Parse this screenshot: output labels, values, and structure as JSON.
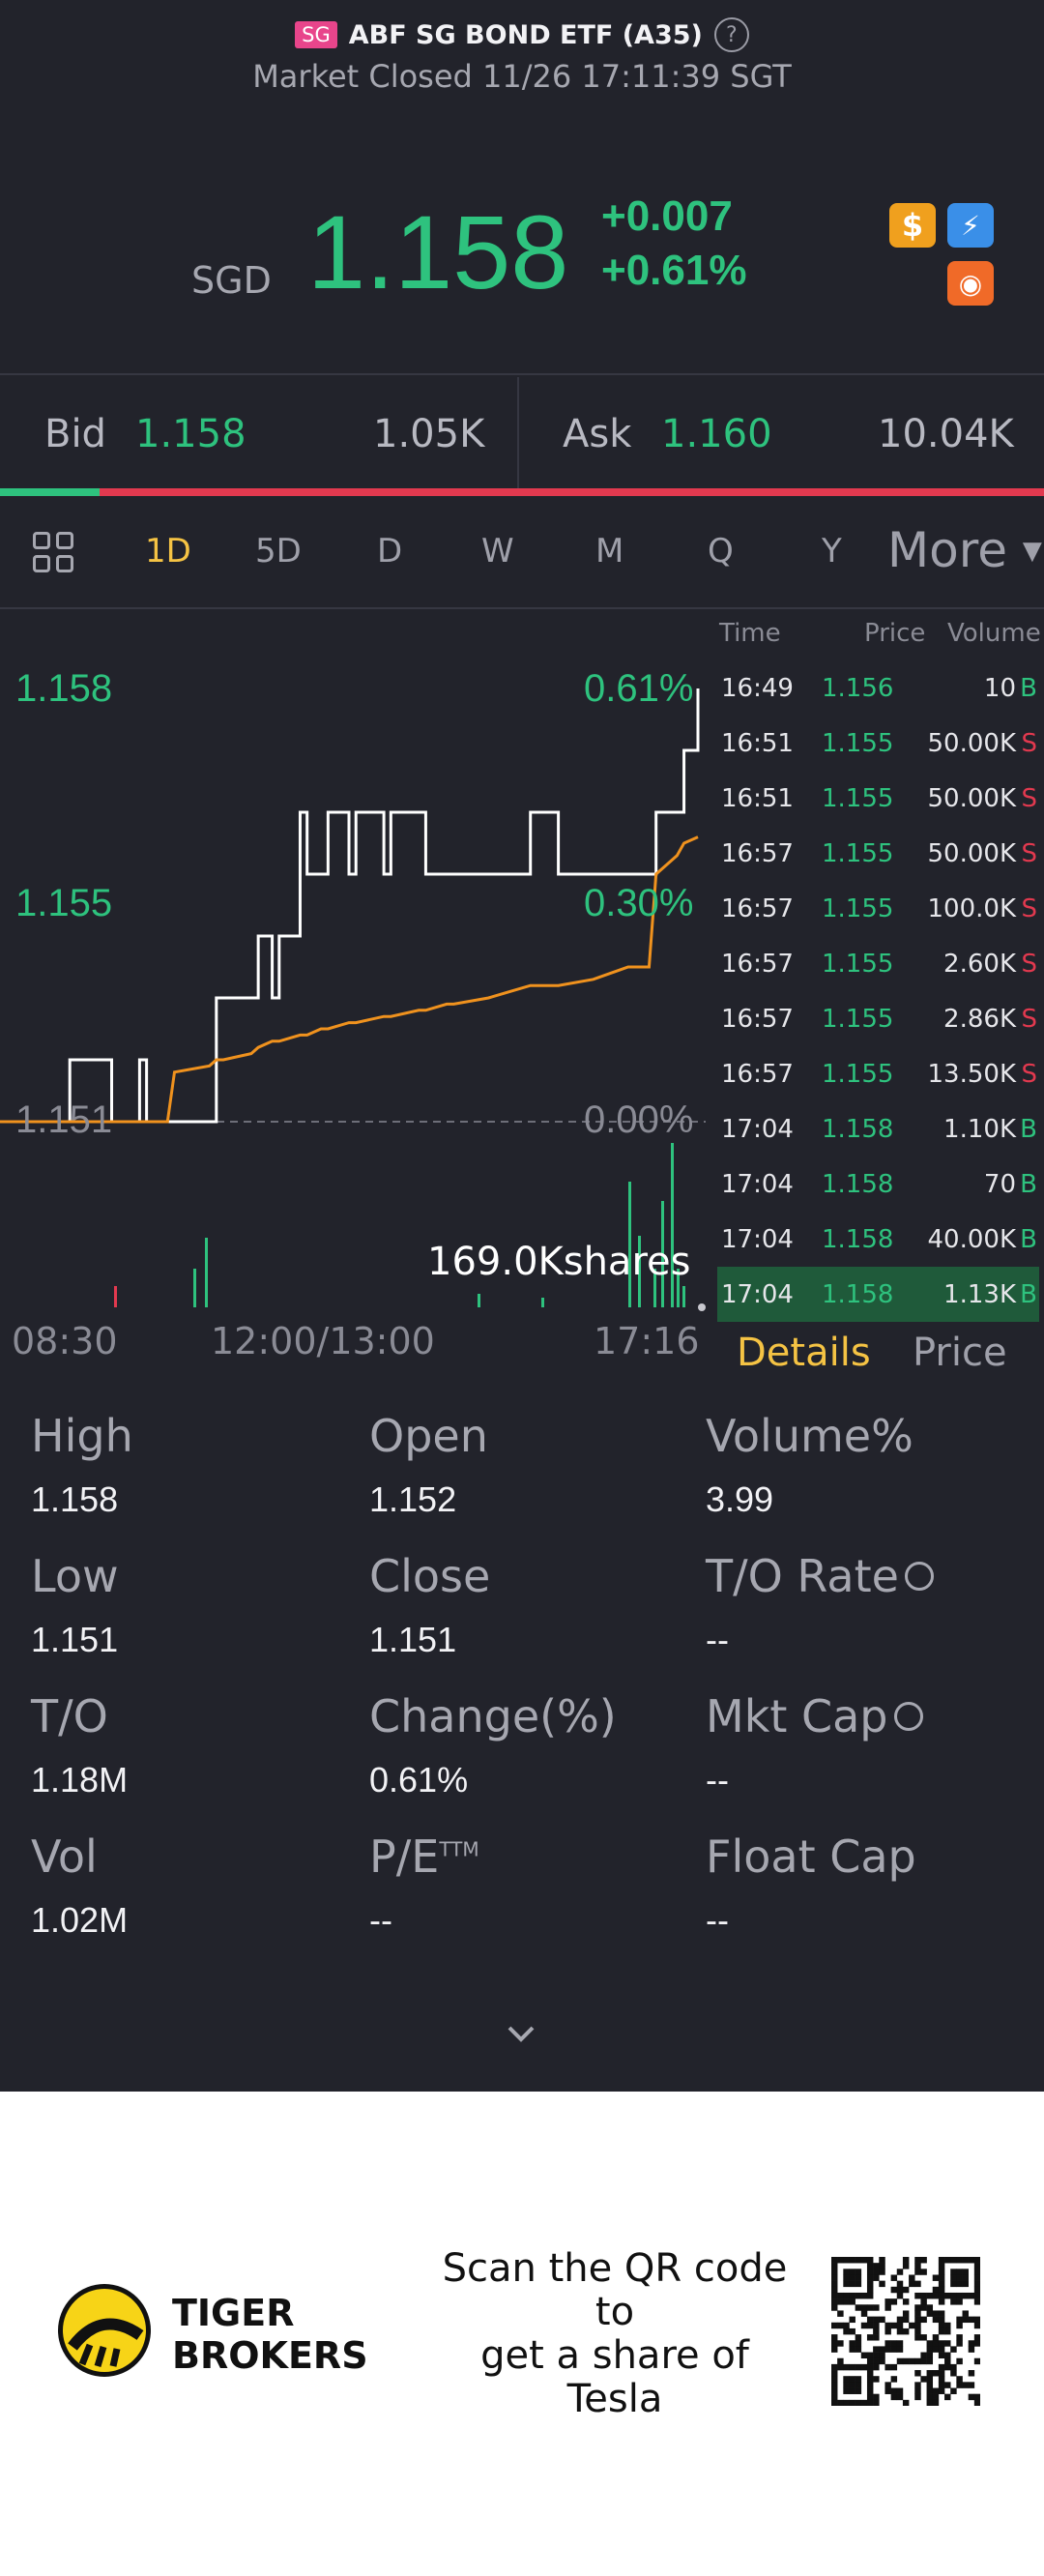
{
  "header": {
    "market_badge": "SG",
    "title": "ABF SG BOND ETF (A35)",
    "status": "Market Closed 11/26 17:11:39 SGT"
  },
  "quote": {
    "currency": "SGD",
    "price": "1.158",
    "change": "+0.007",
    "change_pct": "+0.61%"
  },
  "bid_ask": {
    "bid_label": "Bid",
    "bid_price": "1.158",
    "bid_volume": "1.05K",
    "ask_label": "Ask",
    "ask_price": "1.160",
    "ask_volume": "10.04K",
    "bid_ratio": 0.095
  },
  "period_tabs": [
    "1D",
    "5D",
    "D",
    "W",
    "M",
    "Q",
    "Y"
  ],
  "period_active": "1D",
  "more_label": "More",
  "chart": {
    "y_labels": [
      "1.158",
      "1.155",
      "1.151"
    ],
    "pct_labels": [
      "0.61%",
      "0.30%",
      "0.00%"
    ],
    "x_labels": [
      "08:30",
      "12:00/13:00",
      "17:16"
    ],
    "volume_label": "169.0Kshares"
  },
  "chart_data": {
    "type": "line",
    "xlabel": "",
    "ylabel": "",
    "ylim": [
      1.151,
      1.158
    ],
    "x": [
      0,
      9,
      10,
      15,
      16,
      18,
      20,
      21,
      24,
      25,
      30,
      31,
      32,
      36,
      37,
      39,
      40,
      43,
      44,
      46,
      47,
      50,
      51,
      55,
      56,
      60,
      61,
      64,
      65,
      70,
      73,
      76,
      80,
      85,
      90,
      93,
      94,
      97,
      98,
      100
    ],
    "series": [
      {
        "values": [
          1.151,
          1.151,
          1.152,
          1.152,
          1.151,
          1.151,
          1.152,
          1.151,
          1.151,
          1.151,
          1.151,
          1.153,
          1.153,
          1.153,
          1.154,
          1.153,
          1.154,
          1.156,
          1.155,
          1.155,
          1.156,
          1.155,
          1.156,
          1.155,
          1.156,
          1.156,
          1.155,
          1.155,
          1.155,
          1.155,
          1.155,
          1.156,
          1.155,
          1.155,
          1.155,
          1.155,
          1.156,
          1.156,
          1.157,
          1.158
        ]
      },
      {
        "values": [
          1.151,
          1.151,
          1.151,
          1.151,
          1.151,
          1.151,
          1.151,
          1.151,
          1.151,
          1.1518,
          1.1519,
          1.152,
          1.152,
          1.1521,
          1.1522,
          1.1523,
          1.1523,
          1.1524,
          1.1524,
          1.1525,
          1.1525,
          1.1526,
          1.1526,
          1.1527,
          1.1527,
          1.1528,
          1.1528,
          1.1529,
          1.1529,
          1.153,
          1.1531,
          1.1532,
          1.1532,
          1.1533,
          1.1535,
          1.1535,
          1.155,
          1.1553,
          1.1555,
          1.1556
        ]
      }
    ]
  },
  "trades": {
    "headers": {
      "time": "Time",
      "price": "Price",
      "volume": "Volume"
    },
    "rows": [
      {
        "time": "16:49",
        "price": "1.156",
        "volume": "10",
        "side": "B"
      },
      {
        "time": "16:51",
        "price": "1.155",
        "volume": "50.00K",
        "side": "S"
      },
      {
        "time": "16:51",
        "price": "1.155",
        "volume": "50.00K",
        "side": "S"
      },
      {
        "time": "16:57",
        "price": "1.155",
        "volume": "50.00K",
        "side": "S"
      },
      {
        "time": "16:57",
        "price": "1.155",
        "volume": "100.0K",
        "side": "S"
      },
      {
        "time": "16:57",
        "price": "1.155",
        "volume": "2.60K",
        "side": "S"
      },
      {
        "time": "16:57",
        "price": "1.155",
        "volume": "2.86K",
        "side": "S"
      },
      {
        "time": "16:57",
        "price": "1.155",
        "volume": "13.50K",
        "side": "S"
      },
      {
        "time": "17:04",
        "price": "1.158",
        "volume": "1.10K",
        "side": "B"
      },
      {
        "time": "17:04",
        "price": "1.158",
        "volume": "70",
        "side": "B"
      },
      {
        "time": "17:04",
        "price": "1.158",
        "volume": "40.00K",
        "side": "B"
      },
      {
        "time": "17:04",
        "price": "1.158",
        "volume": "1.13K",
        "side": "B"
      }
    ]
  },
  "detail_tabs": {
    "details": "Details",
    "price": "Price"
  },
  "stats": [
    {
      "label": "High",
      "value": "1.158"
    },
    {
      "label": "Open",
      "value": "1.152"
    },
    {
      "label": "Volume%",
      "value": "3.99"
    },
    {
      "label": "Low",
      "value": "1.151"
    },
    {
      "label": "Close",
      "value": "1.151"
    },
    {
      "label": "T/O Rate",
      "value": "--"
    },
    {
      "label": "T/O",
      "value": "1.18M"
    },
    {
      "label": "Change(%)",
      "value": "0.61%"
    },
    {
      "label": "Mkt Cap",
      "value": "--"
    },
    {
      "label": "Vol",
      "value": "1.02M"
    },
    {
      "label": "P/E",
      "value": "--"
    },
    {
      "label": "Float Cap",
      "value": "--"
    }
  ],
  "pe_superscript": "TTM",
  "footer": {
    "brand_line1": "TIGER",
    "brand_line2": "BROKERS",
    "promo_line1": "Scan the QR code",
    "promo_line2": "to",
    "promo_line3": "get a share of",
    "promo_line4": "Tesla"
  },
  "colors": {
    "background": "#22232b",
    "up": "#2ec27e",
    "down": "#e2394f",
    "accent": "#f5c344",
    "avg_line": "#f0921e"
  }
}
